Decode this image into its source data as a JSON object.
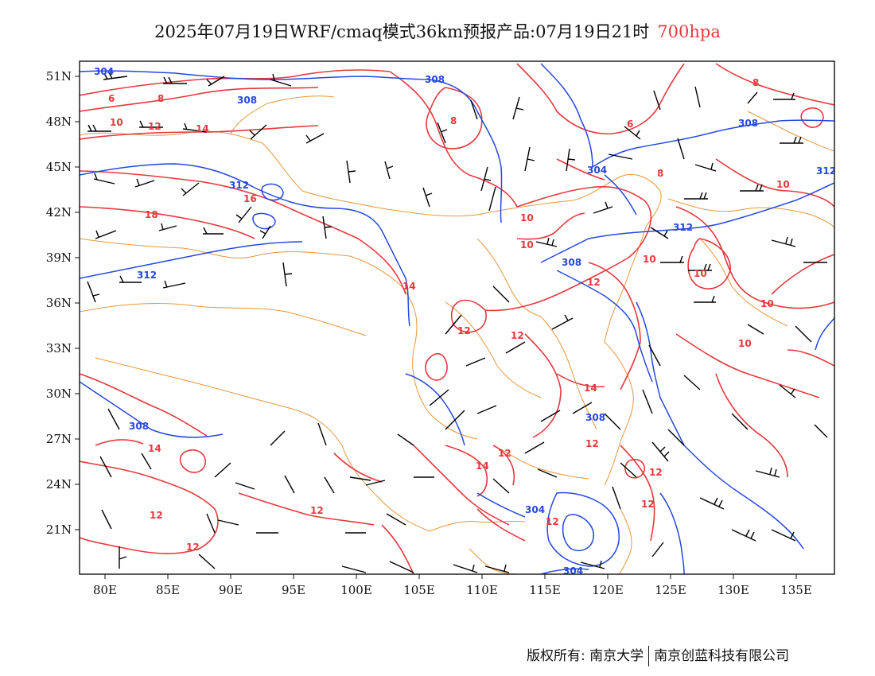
{
  "title": {
    "main": "2025年07月19日WRF/cmaq模式36km预报产品:07月19日21时",
    "level": "700hpa"
  },
  "colors": {
    "temperature": "#e8383d",
    "geopotential": "#2548e0",
    "border": "#e8963c",
    "wind": "#000000",
    "level": "#e8383d"
  },
  "axes": {
    "x_ticks": [
      "80E",
      "85E",
      "90E",
      "95E",
      "100E",
      "105E",
      "110E",
      "115E",
      "120E",
      "125E",
      "130E",
      "135E"
    ],
    "y_ticks": [
      "51N",
      "48N",
      "45N",
      "42N",
      "39N",
      "36N",
      "33N",
      "30N",
      "27N",
      "24N",
      "21N"
    ],
    "lon_range": [
      78,
      138
    ],
    "lat_range": [
      18,
      52
    ]
  },
  "contour_labels": {
    "temperature": [
      "6",
      "8",
      "10",
      "12",
      "14",
      "16",
      "18",
      "8",
      "6",
      "8",
      "8",
      "10",
      "10",
      "12",
      "14",
      "12",
      "12",
      "14",
      "12",
      "12",
      "14",
      "12",
      "12",
      "12",
      "10",
      "10",
      "10",
      "10",
      "10",
      "12",
      "12",
      "14",
      "12"
    ],
    "geopotential": [
      "304",
      "308",
      "308",
      "312",
      "312",
      "308",
      "304",
      "308",
      "312",
      "312",
      "308",
      "308",
      "304",
      "304"
    ]
  },
  "legend_note": "",
  "footer": {
    "left": "版权所有: 南京大学",
    "right": "南京创蓝科技有限公司"
  }
}
